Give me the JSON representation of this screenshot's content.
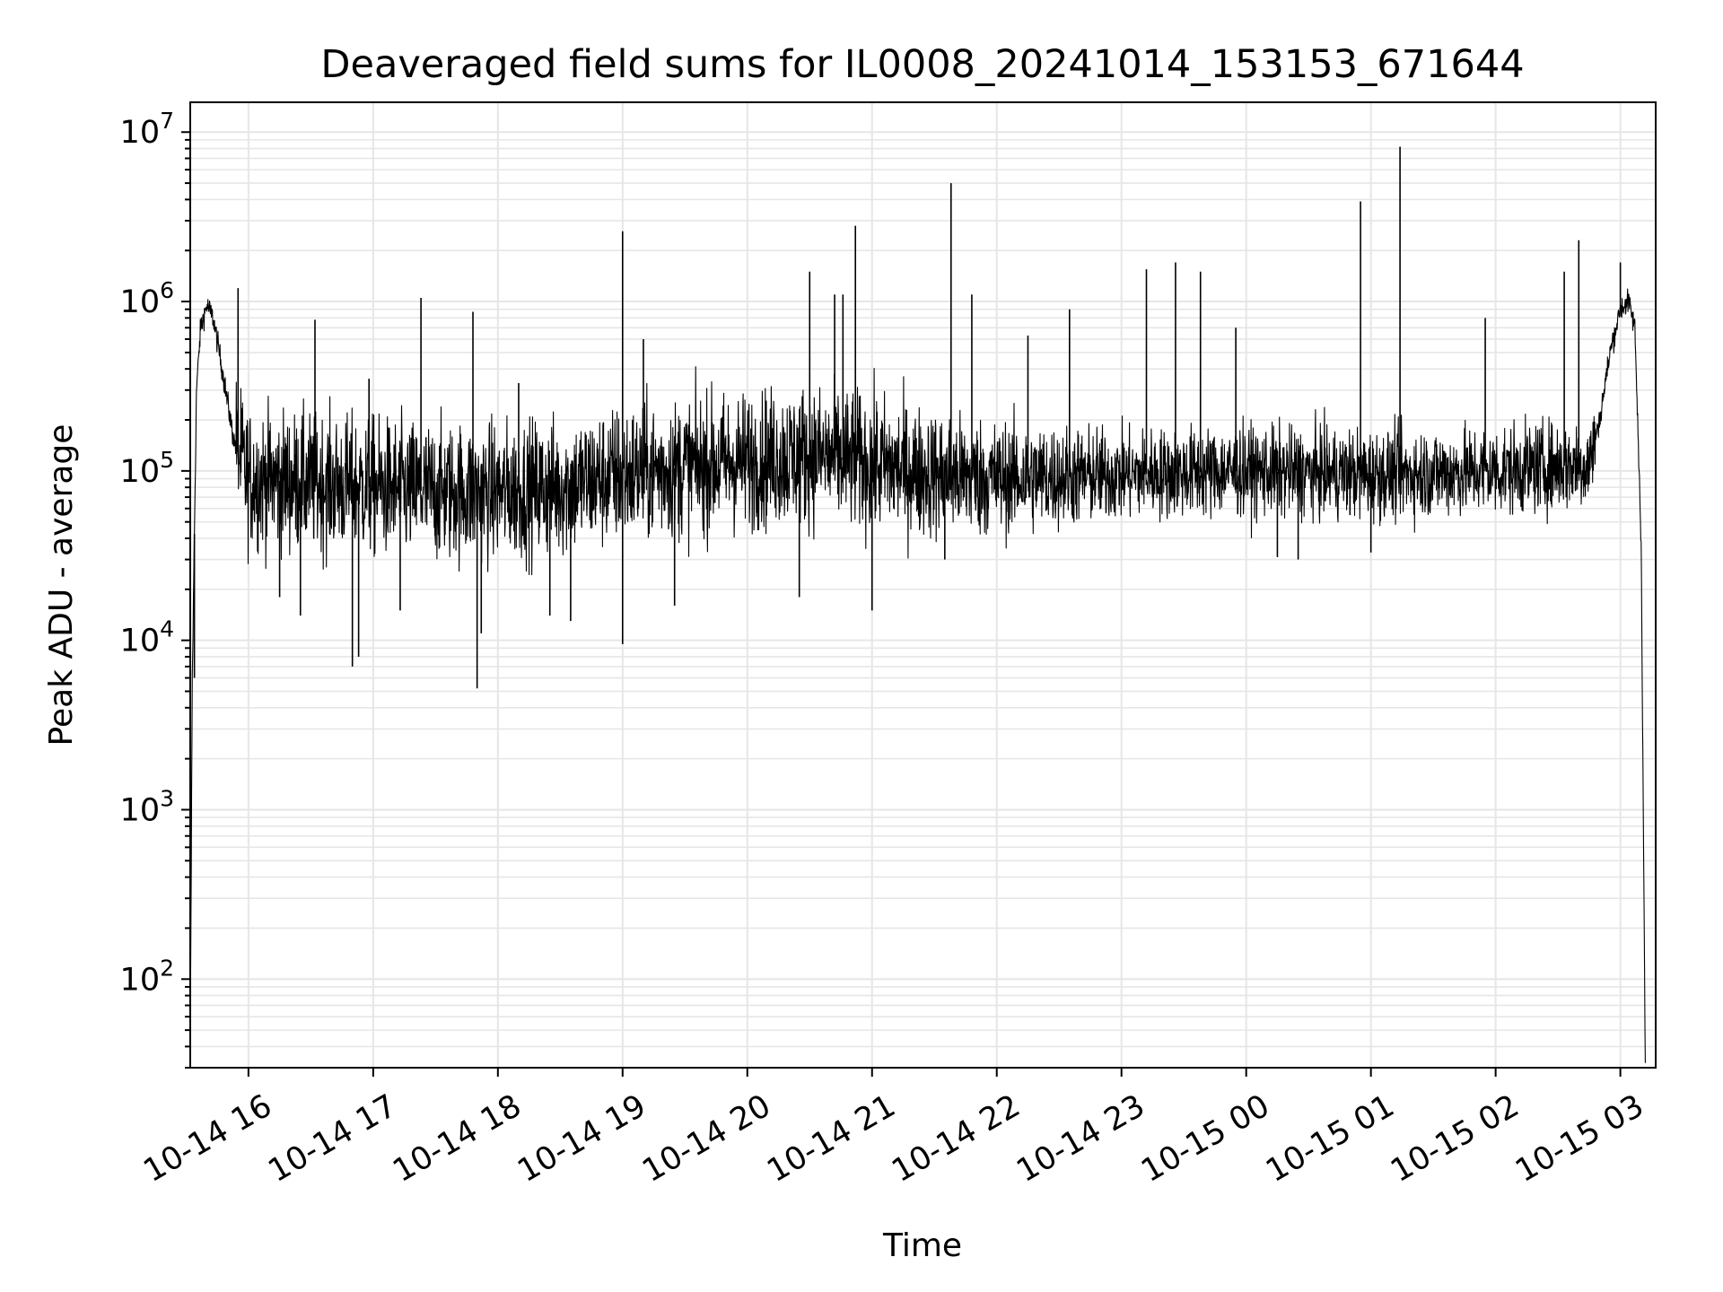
{
  "chart_data": {
    "type": "line",
    "title": "Deaveraged field sums for IL0008_20241014_153153_671644",
    "xlabel": "Time",
    "ylabel": "Peak ADU - average",
    "yscale": "log",
    "xlim": [
      "2024-10-14 15:32",
      "2024-10-15 03:17"
    ],
    "ylim": [
      30,
      15000000
    ],
    "grid": true,
    "line_color": "#000000",
    "grid_color": "#e6e6e6",
    "x_ticks": [
      {
        "label": "10-14 16",
        "time": "2024-10-14 16:00"
      },
      {
        "label": "10-14 17",
        "time": "2024-10-14 17:00"
      },
      {
        "label": "10-14 18",
        "time": "2024-10-14 18:00"
      },
      {
        "label": "10-14 19",
        "time": "2024-10-14 19:00"
      },
      {
        "label": "10-14 20",
        "time": "2024-10-14 20:00"
      },
      {
        "label": "10-14 21",
        "time": "2024-10-14 21:00"
      },
      {
        "label": "10-14 22",
        "time": "2024-10-14 22:00"
      },
      {
        "label": "10-14 23",
        "time": "2024-10-14 23:00"
      },
      {
        "label": "10-15 00",
        "time": "2024-10-15 00:00"
      },
      {
        "label": "10-15 01",
        "time": "2024-10-15 01:00"
      },
      {
        "label": "10-15 02",
        "time": "2024-10-15 02:00"
      },
      {
        "label": "10-15 03",
        "time": "2024-10-15 03:00"
      }
    ],
    "y_ticks": [
      {
        "base": "10",
        "exp": "2",
        "value": 100
      },
      {
        "base": "10",
        "exp": "3",
        "value": 1000
      },
      {
        "base": "10",
        "exp": "4",
        "value": 10000
      },
      {
        "base": "10",
        "exp": "5",
        "value": 100000
      },
      {
        "base": "10",
        "exp": "6",
        "value": 1000000
      },
      {
        "base": "10",
        "exp": "7",
        "value": 10000000
      }
    ],
    "series": [
      {
        "points": [
          [
            "2024-10-14 15:32",
            40
          ],
          [
            "2024-10-14 15:33",
            6000
          ],
          [
            "2024-10-14 15:35",
            300000
          ],
          [
            "2024-10-14 15:37",
            700000
          ],
          [
            "2024-10-14 15:40",
            950000
          ],
          [
            "2024-10-14 15:43",
            800000
          ],
          [
            "2024-10-14 15:46",
            500000
          ],
          [
            "2024-10-14 15:49",
            300000
          ],
          [
            "2024-10-14 15:53",
            150000
          ],
          [
            "2024-10-14 16:00",
            90000
          ],
          [
            "2024-10-14 16:30",
            85000
          ],
          [
            "2024-10-14 17:00",
            80000
          ],
          [
            "2024-10-14 17:30",
            75000
          ],
          [
            "2024-10-14 18:00",
            75000
          ],
          [
            "2024-10-14 18:30",
            80000
          ],
          [
            "2024-10-14 19:00",
            95000
          ],
          [
            "2024-10-14 19:30",
            105000
          ],
          [
            "2024-10-14 20:00",
            115000
          ],
          [
            "2024-10-14 20:30",
            125000
          ],
          [
            "2024-10-14 21:00",
            110000
          ],
          [
            "2024-10-14 21:30",
            95000
          ],
          [
            "2024-10-14 22:00",
            90000
          ],
          [
            "2024-10-14 23:00",
            95000
          ],
          [
            "2024-10-15 00:00",
            100000
          ],
          [
            "2024-10-15 01:00",
            95000
          ],
          [
            "2024-10-15 02:00",
            100000
          ],
          [
            "2024-10-15 02:45",
            110000
          ],
          [
            "2024-10-15 02:50",
            200000
          ],
          [
            "2024-10-15 02:55",
            500000
          ],
          [
            "2024-10-15 03:00",
            900000
          ],
          [
            "2024-10-15 03:04",
            1000000
          ],
          [
            "2024-10-15 03:07",
            700000
          ],
          [
            "2024-10-15 03:10",
            40000
          ],
          [
            "2024-10-15 03:12",
            30
          ]
        ],
        "spikes": [
          [
            "2024-10-14 15:55",
            1200000
          ],
          [
            "2024-10-14 16:32",
            780000
          ],
          [
            "2024-10-14 16:58",
            350000
          ],
          [
            "2024-10-14 17:23",
            1050000
          ],
          [
            "2024-10-14 17:48",
            870000
          ],
          [
            "2024-10-14 18:10",
            330000
          ],
          [
            "2024-10-14 19:00",
            2600000
          ],
          [
            "2024-10-14 19:10",
            600000
          ],
          [
            "2024-10-14 20:30",
            1500000
          ],
          [
            "2024-10-14 20:42",
            1100000
          ],
          [
            "2024-10-14 20:46",
            1100000
          ],
          [
            "2024-10-14 20:52",
            2800000
          ],
          [
            "2024-10-14 21:38",
            5000000
          ],
          [
            "2024-10-14 21:48",
            1100000
          ],
          [
            "2024-10-14 22:15",
            630000
          ],
          [
            "2024-10-14 22:35",
            900000
          ],
          [
            "2024-10-14 23:12",
            1550000
          ],
          [
            "2024-10-14 23:26",
            1700000
          ],
          [
            "2024-10-14 23:38",
            1500000
          ],
          [
            "2024-10-14 23:55",
            700000
          ],
          [
            "2024-10-15 00:55",
            3900000
          ],
          [
            "2024-10-15 01:14",
            8200000
          ],
          [
            "2024-10-15 01:55",
            800000
          ],
          [
            "2024-10-15 02:33",
            1500000
          ],
          [
            "2024-10-15 02:40",
            2300000
          ],
          [
            "2024-10-15 03:00",
            1700000
          ]
        ],
        "dips": [
          [
            "2024-10-14 15:34",
            6000
          ],
          [
            "2024-10-14 16:15",
            18000
          ],
          [
            "2024-10-14 16:25",
            14000
          ],
          [
            "2024-10-14 16:50",
            7000
          ],
          [
            "2024-10-14 16:53",
            8000
          ],
          [
            "2024-10-14 17:13",
            15000
          ],
          [
            "2024-10-14 17:50",
            5200
          ],
          [
            "2024-10-14 17:52",
            11000
          ],
          [
            "2024-10-14 18:25",
            14000
          ],
          [
            "2024-10-14 18:35",
            13000
          ],
          [
            "2024-10-14 19:00",
            9500
          ],
          [
            "2024-10-14 19:25",
            16000
          ],
          [
            "2024-10-14 20:25",
            18000
          ],
          [
            "2024-10-14 21:00",
            15000
          ],
          [
            "2024-10-14 21:35",
            30000
          ],
          [
            "2024-10-15 00:15",
            31000
          ],
          [
            "2024-10-15 00:25",
            30000
          ],
          [
            "2024-10-15 01:00",
            33000
          ]
        ]
      }
    ]
  }
}
